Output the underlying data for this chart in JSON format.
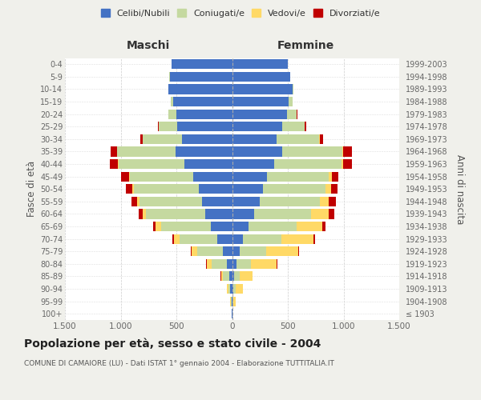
{
  "age_groups": [
    "100+",
    "95-99",
    "90-94",
    "85-89",
    "80-84",
    "75-79",
    "70-74",
    "65-69",
    "60-64",
    "55-59",
    "50-54",
    "45-49",
    "40-44",
    "35-39",
    "30-34",
    "25-29",
    "20-24",
    "15-19",
    "10-14",
    "5-9",
    "0-4"
  ],
  "birth_years": [
    "≤ 1903",
    "1904-1908",
    "1909-1913",
    "1914-1918",
    "1919-1923",
    "1924-1928",
    "1929-1933",
    "1934-1938",
    "1939-1943",
    "1944-1948",
    "1949-1953",
    "1954-1958",
    "1959-1963",
    "1964-1968",
    "1969-1973",
    "1974-1978",
    "1979-1983",
    "1984-1988",
    "1989-1993",
    "1994-1998",
    "1999-2003"
  ],
  "maschi_celibi": [
    2,
    5,
    15,
    25,
    50,
    80,
    130,
    190,
    240,
    270,
    300,
    350,
    430,
    510,
    450,
    490,
    500,
    530,
    570,
    560,
    540
  ],
  "maschi_coniugati": [
    2,
    8,
    20,
    55,
    130,
    230,
    340,
    450,
    530,
    560,
    580,
    570,
    590,
    520,
    350,
    170,
    70,
    20,
    5,
    2,
    1
  ],
  "maschi_vedovi": [
    1,
    4,
    10,
    20,
    50,
    55,
    55,
    50,
    30,
    20,
    15,
    8,
    5,
    3,
    2,
    1,
    1,
    0,
    0,
    0,
    0
  ],
  "maschi_divorziati": [
    0,
    0,
    1,
    2,
    3,
    5,
    10,
    20,
    40,
    55,
    55,
    65,
    75,
    55,
    20,
    5,
    2,
    1,
    0,
    0,
    0
  ],
  "femmine_nubili": [
    2,
    5,
    10,
    20,
    40,
    65,
    100,
    150,
    200,
    245,
    275,
    310,
    380,
    450,
    400,
    450,
    490,
    510,
    540,
    520,
    500
  ],
  "femmine_coniugate": [
    2,
    5,
    20,
    50,
    130,
    240,
    340,
    430,
    510,
    545,
    560,
    560,
    600,
    540,
    380,
    200,
    90,
    30,
    10,
    3,
    1
  ],
  "femmine_vedove": [
    3,
    20,
    65,
    110,
    230,
    290,
    290,
    230,
    160,
    80,
    50,
    25,
    15,
    8,
    5,
    3,
    2,
    1,
    0,
    0,
    0
  ],
  "femmine_divorziate": [
    0,
    0,
    2,
    3,
    5,
    8,
    15,
    30,
    50,
    65,
    60,
    60,
    80,
    80,
    35,
    10,
    3,
    1,
    0,
    0,
    0
  ],
  "color_celibi": "#4472C4",
  "color_coniugati": "#C5D9A0",
  "color_vedovi": "#FFD966",
  "color_divorziati": "#C00000",
  "xlim": 1500,
  "xtick_vals": [
    -1500,
    -1000,
    -500,
    0,
    500,
    1000,
    1500
  ],
  "xtick_labels": [
    "1.500",
    "1.000",
    "500",
    "0",
    "500",
    "1.000",
    "1.500"
  ],
  "title": "Popolazione per età, sesso e stato civile - 2004",
  "subtitle": "COMUNE DI CAMAIORE (LU) - Dati ISTAT 1° gennaio 2004 - Elaborazione TUTTITALIA.IT",
  "ylabel_left": "Fasce di età",
  "ylabel_right": "Anni di nascita",
  "label_maschi": "Maschi",
  "label_femmine": "Femmine",
  "legend_labels": [
    "Celibi/Nubili",
    "Coniugati/e",
    "Vedovi/e",
    "Divorziati/e"
  ],
  "bg_color": "#f0f0eb",
  "plot_bg": "#ffffff"
}
